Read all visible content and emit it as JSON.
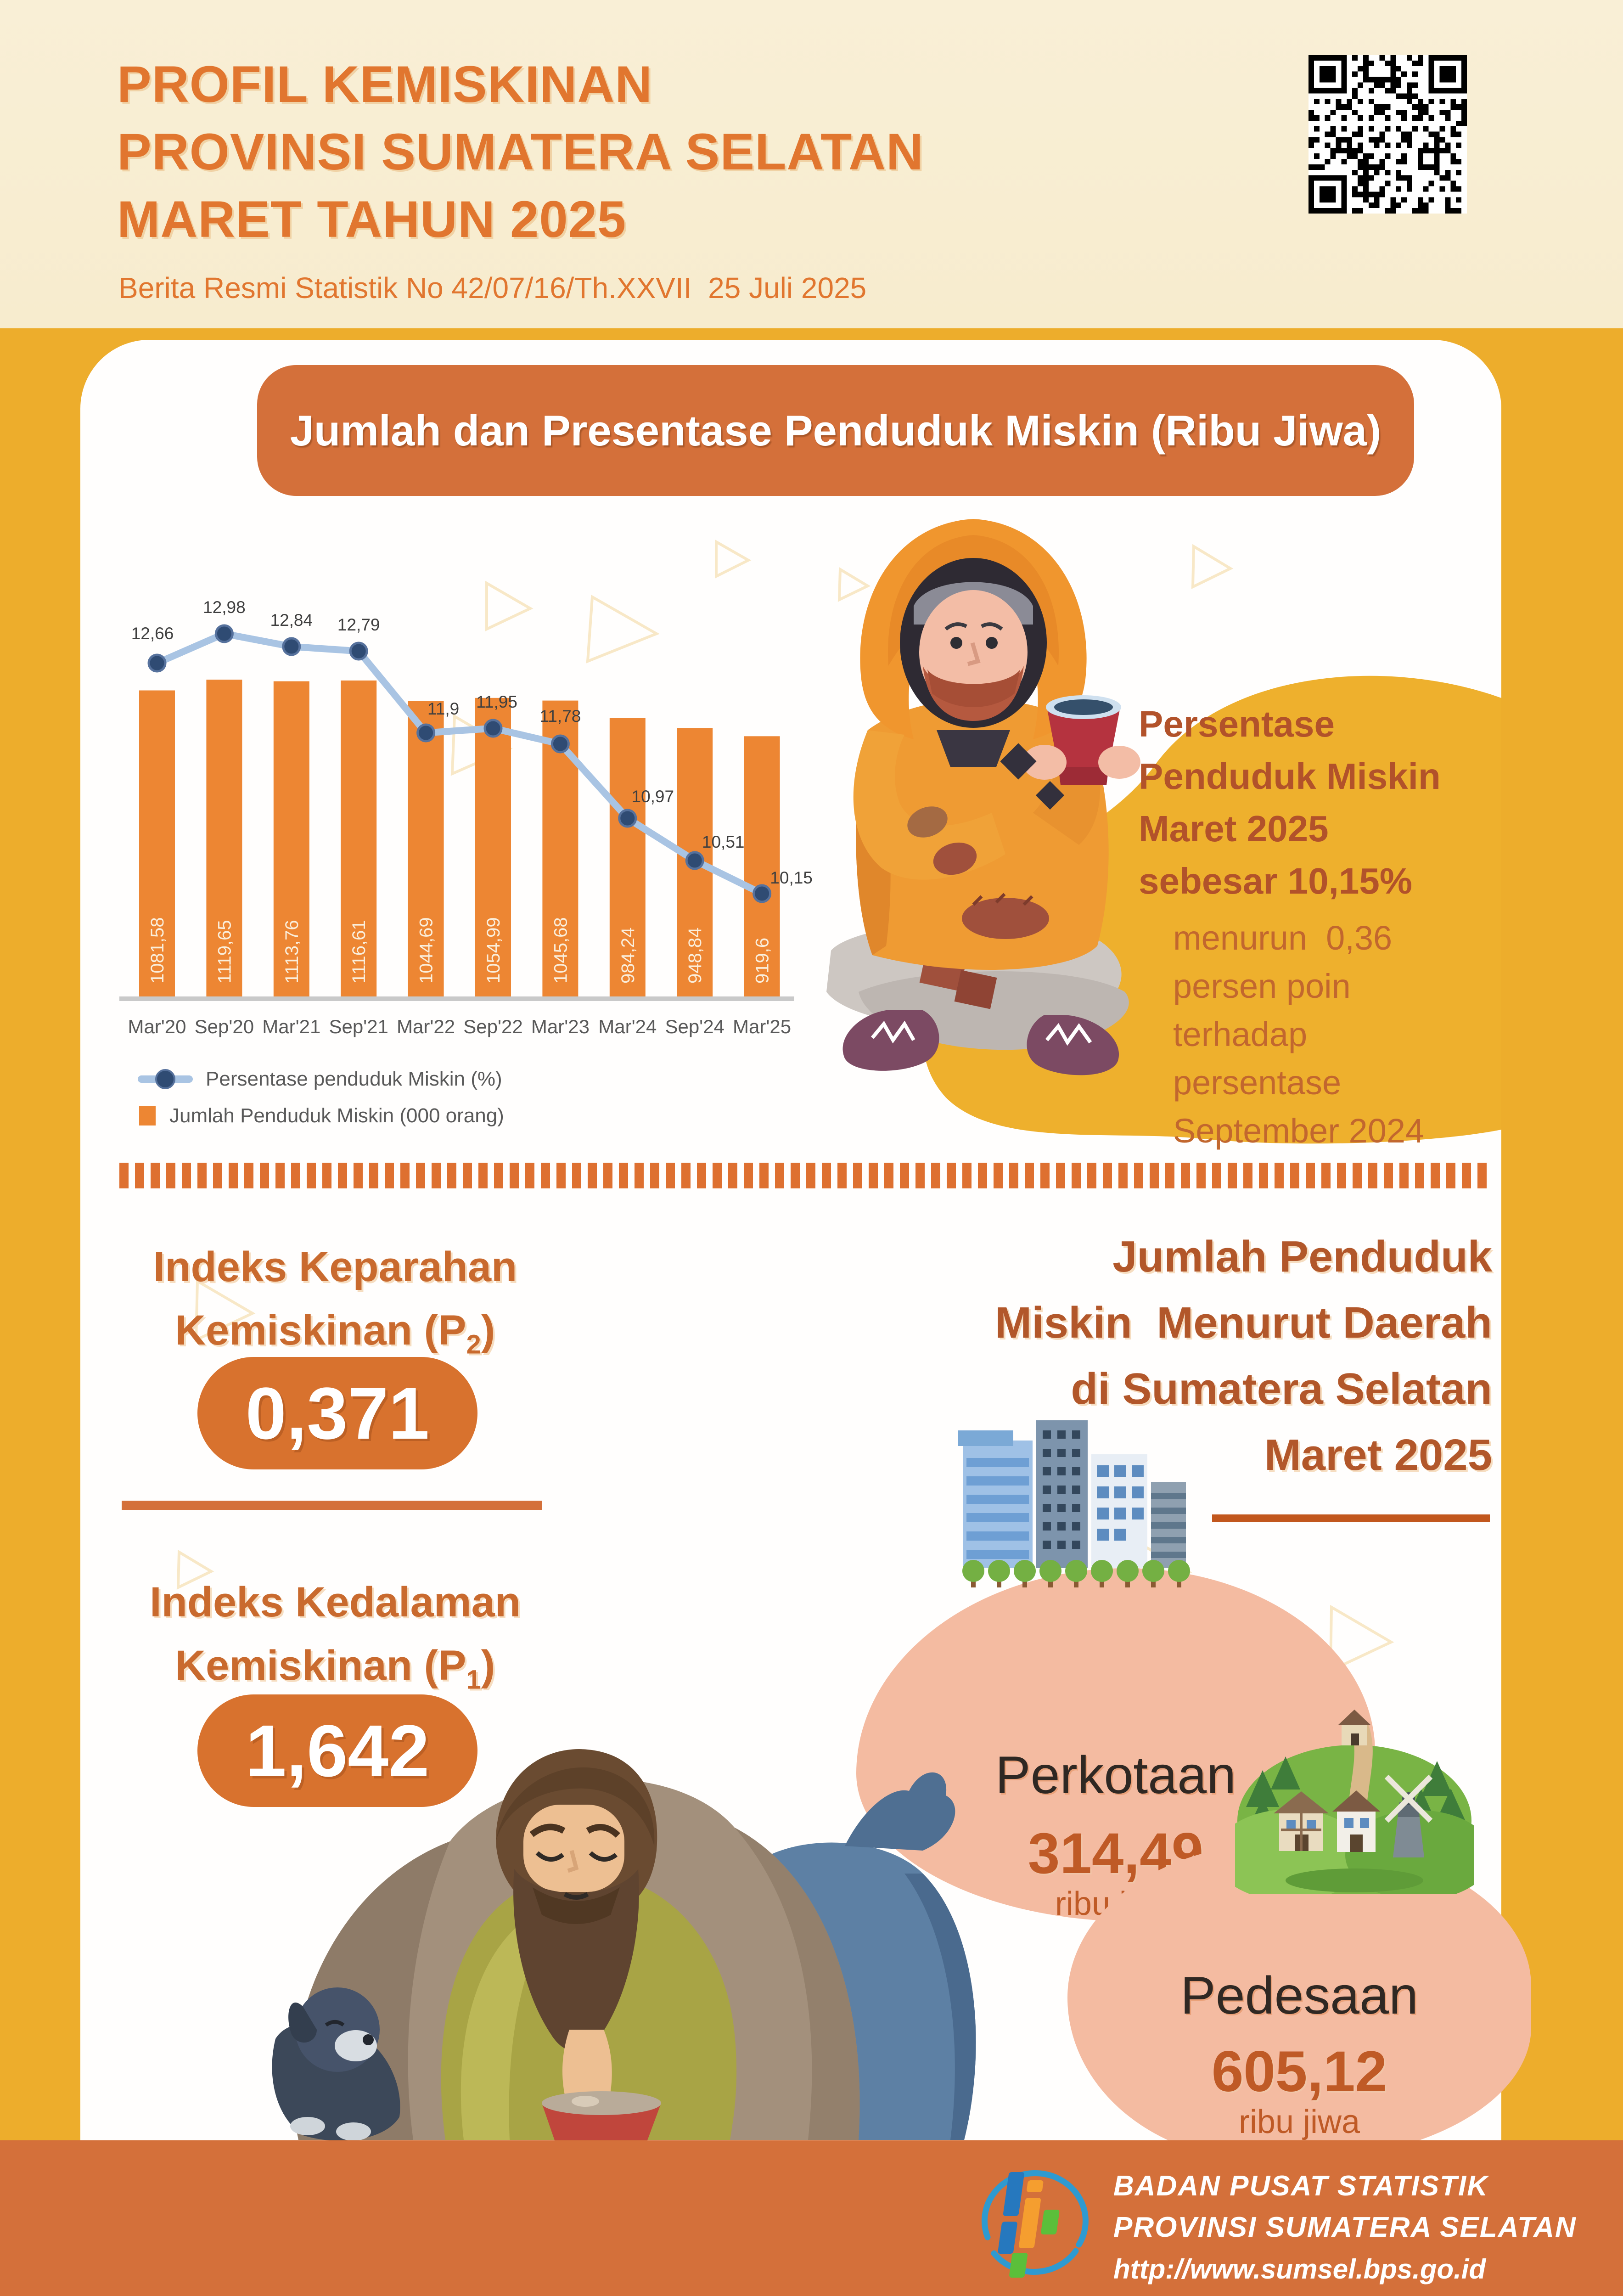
{
  "header": {
    "title_lines": [
      "PROFIL KEMISKINAN",
      "PROVINSI SUMATERA SELATAN",
      "MARET TAHUN 2025"
    ],
    "subtitle": "Berita Resmi Statistik No 42/07/16/Th.XXVII  25 Juli 2025"
  },
  "banner": "Jumlah dan Presentase Penduduk Miskin (Ribu Jiwa)",
  "chart_data": {
    "type": "bar",
    "title": "Jumlah dan Presentase Penduduk Miskin (Ribu Jiwa)",
    "categories": [
      "Mar'20",
      "Sep'20",
      "Mar'21",
      "Sep'21",
      "Mar'22",
      "Sep'22",
      "Mar'23",
      "Mar'24",
      "Sep'24",
      "Mar'25"
    ],
    "series": [
      {
        "name": "Jumlah Penduduk Miskin (000 orang)",
        "type": "bar",
        "color": "#ed8633",
        "values": [
          1081.58,
          1119.65,
          1113.76,
          1116.61,
          1044.69,
          1054.99,
          1045.68,
          984.24,
          948.84,
          919.6
        ],
        "labels": [
          "1081,58",
          "1119,65",
          "1113,76",
          "1116,61",
          "1044,69",
          "1054,99",
          "1045,68",
          "984,24",
          "948,84",
          "919,6"
        ]
      },
      {
        "name": "Persentase penduduk Miskin (%)",
        "type": "line",
        "color": "#a9c4e3",
        "marker_color": "#2f4b73",
        "values": [
          12.66,
          12.98,
          12.84,
          12.79,
          11.9,
          11.95,
          11.78,
          10.97,
          10.51,
          10.15
        ],
        "labels": [
          "12,66",
          "12,98",
          "12,84",
          "12,79",
          "11,9",
          "11,95",
          "11,78",
          "10,97",
          "10,51",
          "10,15"
        ]
      }
    ],
    "legend_position": "bottom-left",
    "grid": false,
    "xlabel": "",
    "ylabel": ""
  },
  "highlight": {
    "head_lines": [
      "Persentase",
      "Penduduk Miskin",
      "Maret 2025",
      "sebesar 10,15%"
    ],
    "body_lines": [
      "menurun  0,36",
      "persen poin",
      "terhadap",
      "persentase",
      "September 2024"
    ]
  },
  "indices": {
    "severity": {
      "line1": "Indeks Keparahan",
      "line2_pre": "Kemiskinan (P",
      "sub": "2",
      "line2_post": ")",
      "value": "0,371"
    },
    "depth": {
      "line1": "Indeks Kedalaman",
      "line2_pre": "Kemiskinan (P",
      "sub": "1",
      "line2_post": ")",
      "value": "1,642"
    }
  },
  "by_region": {
    "title_lines": [
      "Jumlah Penduduk",
      "Miskin  Menurut Daerah",
      "di Sumatera Selatan",
      "Maret 2025"
    ],
    "urban": {
      "label": "Perkotaan",
      "value": "314,49",
      "unit": "ribu jiwa"
    },
    "rural": {
      "label": "Pedesaan",
      "value": "605,12",
      "unit": "ribu jiwa"
    }
  },
  "footer": {
    "org_line1": "BADAN PUSAT STATISTIK",
    "org_line2": "PROVINSI SUMATERA SELATAN",
    "url": "http://www.sumsel.bps.go.id"
  },
  "colors": {
    "cream_header": "#f9efd6",
    "gold": "#edad2c",
    "banner_orange": "#d4703a",
    "bar_orange": "#ed8633",
    "line_blue": "#a9c4e3",
    "marker_navy": "#2f4b73",
    "heading_brown": "#b2572a",
    "salmon_blob": "#f4bba1",
    "text_gray": "#595959"
  }
}
